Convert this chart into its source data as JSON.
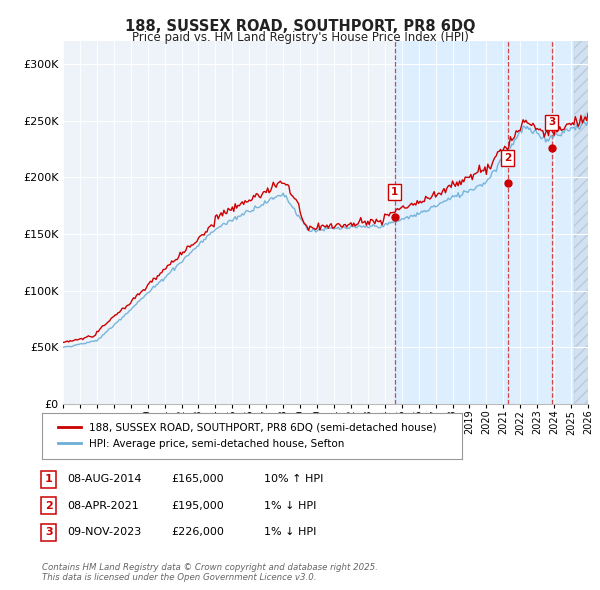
{
  "title": "188, SUSSEX ROAD, SOUTHPORT, PR8 6DQ",
  "subtitle": "Price paid vs. HM Land Registry's House Price Index (HPI)",
  "xlim_start": 1995.0,
  "xlim_end": 2026.0,
  "ylim": [
    0,
    320000
  ],
  "yticks": [
    0,
    50000,
    100000,
    150000,
    200000,
    250000,
    300000
  ],
  "ytick_labels": [
    "£0",
    "£50K",
    "£100K",
    "£150K",
    "£200K",
    "£250K",
    "£300K"
  ],
  "sale_dates": [
    2014.6,
    2021.27,
    2023.86
  ],
  "sale_prices": [
    165000,
    195000,
    226000
  ],
  "sale_labels": [
    "1",
    "2",
    "3"
  ],
  "hpi_line_color": "#6baed6",
  "price_line_color": "#cc0000",
  "vline_color": "#cc0000",
  "shade_color": "#ddeeff",
  "legend_line1": "188, SUSSEX ROAD, SOUTHPORT, PR8 6DQ (semi-detached house)",
  "legend_line2": "HPI: Average price, semi-detached house, Sefton",
  "table_data": [
    [
      "1",
      "08-AUG-2014",
      "£165,000",
      "10% ↑ HPI"
    ],
    [
      "2",
      "08-APR-2021",
      "£195,000",
      "1% ↓ HPI"
    ],
    [
      "3",
      "09-NOV-2023",
      "£226,000",
      "1% ↓ HPI"
    ]
  ],
  "footnote": "Contains HM Land Registry data © Crown copyright and database right 2025.\nThis data is licensed under the Open Government Licence v3.0.",
  "background_chart": "#eef3fa",
  "background_fig": "#ffffff",
  "grid_color": "#ffffff"
}
